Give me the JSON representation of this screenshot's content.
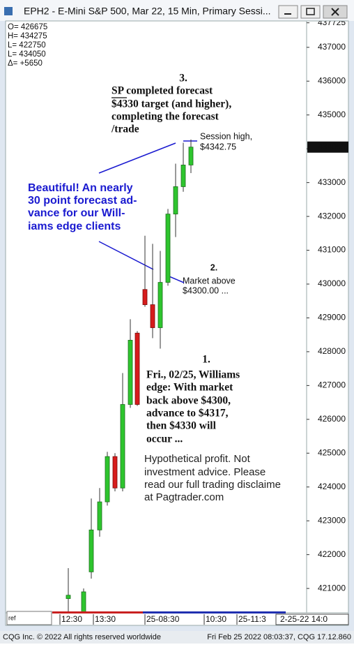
{
  "window_title": "EPH2 - E-Mini S&P 500, Mar 22, 15 Min, Primary Sessi...",
  "header_stats": [
    "O= 426675",
    "H= 434275",
    "L= 422750",
    "L= 434050",
    "Δ=   +5650"
  ],
  "chart_data": {
    "type": "candlestick",
    "categories": [
      null,
      null,
      null,
      null,
      null,
      null,
      null,
      null,
      null,
      null,
      null,
      null,
      null,
      null,
      null,
      null
    ],
    "series": [
      {
        "name": "open",
        "values": [
          420700,
          420300,
          421490,
          422730,
          423560,
          424900,
          423970,
          426440,
          428550,
          429840,
          429390,
          428710,
          430050,
          432070,
          432880,
          433520
        ]
      },
      {
        "name": "high",
        "values": [
          421600,
          421000,
          423660,
          423970,
          425040,
          425000,
          427370,
          428960,
          428610,
          431430,
          431190,
          430980,
          432220,
          433560,
          434180,
          434275
        ]
      },
      {
        "name": "low",
        "values": [
          420300,
          420300,
          421290,
          422530,
          423450,
          423870,
          423870,
          426340,
          426400,
          429330,
          428400,
          428090,
          429950,
          431390,
          432730,
          433280
        ]
      },
      {
        "name": "close",
        "values": [
          420800,
          420900,
          422730,
          423560,
          424900,
          423970,
          426440,
          428340,
          426440,
          429390,
          428710,
          430050,
          432070,
          432880,
          433520,
          434050
        ]
      }
    ],
    "up_color": "#2ec52e",
    "down_color": "#d61c1c",
    "ylim": [
      420280,
      437780
    ],
    "yticks": [
      421000,
      422000,
      423000,
      424000,
      425000,
      426000,
      427000,
      428000,
      429000,
      430000,
      431000,
      432000,
      433000,
      434000,
      435000,
      436000,
      437000,
      437725
    ],
    "last_price": 434050,
    "x_labels": [
      "12:30",
      "13:30",
      "25-08:30",
      "10:30",
      "25-11:3"
    ],
    "x_date_box": "2-25-22  14:0",
    "input_text": "ref"
  },
  "annotations": [
    {
      "number": "3.",
      "lines": [
        "SP completed forecast",
        "$4330 target (and higher),",
        "completing the forecast",
        "/trade"
      ]
    },
    {
      "lines": [
        "Session high,",
        "$4342.75"
      ]
    },
    {
      "lines": [
        "Beautiful! An nearly",
        "30 point forecast ad-",
        "vance for our Will-",
        "iams edge clients"
      ]
    },
    {
      "number": "2.",
      "lines": [
        "Market above",
        "$4300.00 ..."
      ]
    },
    {
      "number": "1.",
      "lines": [
        "Fri., 02/25, Williams",
        "edge: With market",
        "back above $4300,",
        "advance to $4317,",
        "then $4330 will",
        "occur ..."
      ]
    },
    {
      "lines": [
        "Hypothetical profit. Not",
        "investment advice. Please",
        "read our full trading disclaime",
        "at Pagtrader.com"
      ]
    }
  ],
  "footer": {
    "left": "CQG Inc. © 2022 All rights reserved worldwide",
    "right": "Fri Feb 25 2022 08:03:37, CQG 17.12.860"
  }
}
